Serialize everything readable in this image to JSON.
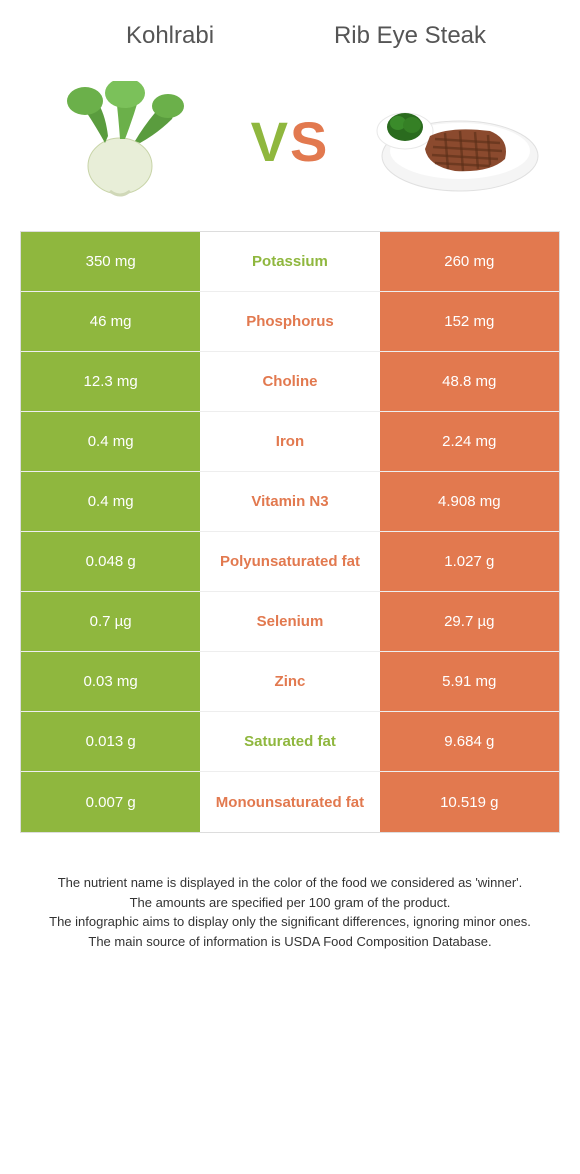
{
  "colors": {
    "green": "#8fb73e",
    "orange": "#e2794f",
    "vs_green": "#8fb73e",
    "vs_orange": "#e2794f"
  },
  "food_left": {
    "title": "Kohlrabi"
  },
  "food_right": {
    "title": "Rib eye steak"
  },
  "vs": "VS",
  "nutrients": [
    {
      "name": "Potassium",
      "left": "350 mg",
      "right": "260 mg",
      "winner": "left"
    },
    {
      "name": "Phosphorus",
      "left": "46 mg",
      "right": "152 mg",
      "winner": "right"
    },
    {
      "name": "Choline",
      "left": "12.3 mg",
      "right": "48.8 mg",
      "winner": "right"
    },
    {
      "name": "Iron",
      "left": "0.4 mg",
      "right": "2.24 mg",
      "winner": "right"
    },
    {
      "name": "Vitamin N3",
      "left": "0.4 mg",
      "right": "4.908 mg",
      "winner": "right"
    },
    {
      "name": "Polyunsaturated fat",
      "left": "0.048 g",
      "right": "1.027 g",
      "winner": "right"
    },
    {
      "name": "Selenium",
      "left": "0.7 µg",
      "right": "29.7 µg",
      "winner": "right"
    },
    {
      "name": "Zinc",
      "left": "0.03 mg",
      "right": "5.91 mg",
      "winner": "right"
    },
    {
      "name": "Saturated fat",
      "left": "0.013 g",
      "right": "9.684 g",
      "winner": "left"
    },
    {
      "name": "Monounsaturated fat",
      "left": "0.007 g",
      "right": "10.519 g",
      "winner": "right"
    }
  ],
  "footer_lines": [
    "The nutrient name is displayed in the color of the food we considered as 'winner'.",
    "The amounts are specified per 100 gram of the product.",
    "The infographic aims to display only the significant differences, ignoring minor ones.",
    "The main source of information is USDA Food Composition Database."
  ]
}
